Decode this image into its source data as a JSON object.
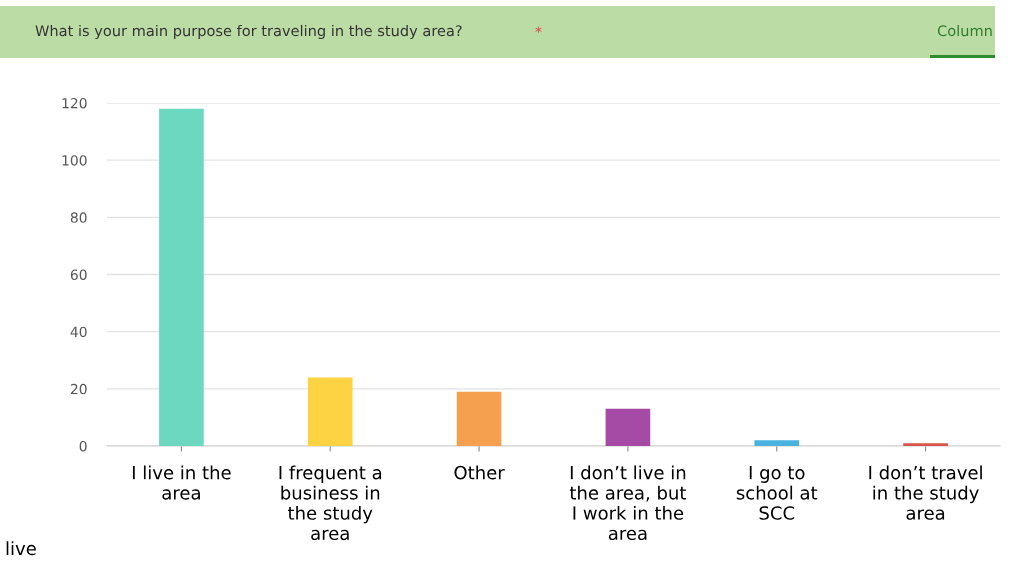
{
  "chart_data": {
    "type": "bar",
    "title": "What is your main purpose for traveling in the study area?",
    "categories": [
      "I live in the\narea",
      "I frequent a\nbusiness in\nthe study\narea",
      "Other",
      "I don’t live in\nthe area, but\nI work in the\narea",
      "I go to\nschool at\nSCC",
      "I don’t travel\nin the study\narea"
    ],
    "values": [
      118,
      24,
      19,
      13,
      2,
      1
    ],
    "colors": [
      "#6bd8bf",
      "#fdd343",
      "#f4a04e",
      "#a54aa5",
      "#4ab2df",
      "#d9534f"
    ],
    "ylim": [
      0,
      120
    ],
    "yticks": [
      0,
      20,
      40,
      60,
      80,
      100,
      120
    ],
    "grid": "y",
    "annotations": [
      "*",
      "Column",
      "live"
    ]
  }
}
